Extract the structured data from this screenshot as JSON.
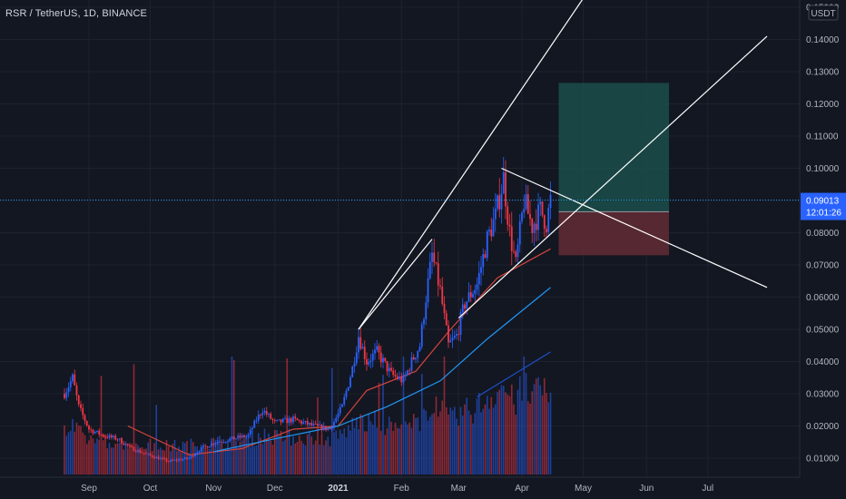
{
  "header": {
    "symbol_title": "RSR / TetherUS, 1D, BINANCE"
  },
  "axis": {
    "currency": "USDT",
    "last_price": "0.09013",
    "countdown": "12:01:26"
  },
  "colors": {
    "up": "#2962ff",
    "down": "#f23645",
    "ma_short": "#d3453d",
    "ma_mid": "#2196f3",
    "ma_long": "#1e50c8",
    "trend": "#ffffff",
    "profit": "#1b4d4a",
    "loss": "#5e2a33",
    "price_line": "#2196f3"
  },
  "chart_data": {
    "type": "candlestick",
    "title": "RSR / TetherUS, 1D, BINANCE",
    "ylabel": "USDT",
    "y_ticks": [
      "0.01000",
      "0.02000",
      "0.03000",
      "0.04000",
      "0.05000",
      "0.06000",
      "0.07000",
      "0.08000",
      "0.09000",
      "0.10000",
      "0.11000",
      "0.12000",
      "0.13000",
      "0.14000",
      "0.15000"
    ],
    "x_ticks": [
      "Sep",
      "Oct",
      "Nov",
      "Dec",
      "2021",
      "Feb",
      "Mar",
      "Apr",
      "May",
      "Jun",
      "Jul"
    ],
    "ylim": [
      0.0055,
      0.1515
    ],
    "time_range": [
      "2020-08-20",
      "2021-07-31"
    ],
    "price_points": [
      {
        "date": "2020-08-20",
        "close": 0.03
      },
      {
        "date": "2020-08-24",
        "close": 0.035
      },
      {
        "date": "2020-08-27",
        "close": 0.026
      },
      {
        "date": "2020-09-01",
        "close": 0.019
      },
      {
        "date": "2020-09-08",
        "close": 0.017
      },
      {
        "date": "2020-09-15",
        "close": 0.016
      },
      {
        "date": "2020-09-22",
        "close": 0.013
      },
      {
        "date": "2020-09-30",
        "close": 0.011
      },
      {
        "date": "2020-10-10",
        "close": 0.009
      },
      {
        "date": "2020-10-20",
        "close": 0.01
      },
      {
        "date": "2020-10-26",
        "close": 0.013
      },
      {
        "date": "2020-11-02",
        "close": 0.015
      },
      {
        "date": "2020-11-10",
        "close": 0.016
      },
      {
        "date": "2020-11-18",
        "close": 0.017
      },
      {
        "date": "2020-11-22",
        "close": 0.022
      },
      {
        "date": "2020-11-25",
        "close": 0.025
      },
      {
        "date": "2020-12-01",
        "close": 0.021
      },
      {
        "date": "2020-12-10",
        "close": 0.022
      },
      {
        "date": "2020-12-20",
        "close": 0.02
      },
      {
        "date": "2020-12-28",
        "close": 0.019
      },
      {
        "date": "2021-01-03",
        "close": 0.026
      },
      {
        "date": "2021-01-08",
        "close": 0.038
      },
      {
        "date": "2021-01-11",
        "close": 0.048
      },
      {
        "date": "2021-01-15",
        "close": 0.04
      },
      {
        "date": "2021-01-20",
        "close": 0.043
      },
      {
        "date": "2021-01-27",
        "close": 0.036
      },
      {
        "date": "2021-02-02",
        "close": 0.034
      },
      {
        "date": "2021-02-06",
        "close": 0.04
      },
      {
        "date": "2021-02-10",
        "close": 0.045
      },
      {
        "date": "2021-02-13",
        "close": 0.06
      },
      {
        "date": "2021-02-16",
        "close": 0.073
      },
      {
        "date": "2021-02-20",
        "close": 0.062
      },
      {
        "date": "2021-02-24",
        "close": 0.045
      },
      {
        "date": "2021-02-28",
        "close": 0.048
      },
      {
        "date": "2021-03-04",
        "close": 0.058
      },
      {
        "date": "2021-03-10",
        "close": 0.064
      },
      {
        "date": "2021-03-15",
        "close": 0.078
      },
      {
        "date": "2021-03-19",
        "close": 0.085
      },
      {
        "date": "2021-03-23",
        "close": 0.097
      },
      {
        "date": "2021-03-26",
        "close": 0.08
      },
      {
        "date": "2021-03-29",
        "close": 0.07
      },
      {
        "date": "2021-04-02",
        "close": 0.09
      },
      {
        "date": "2021-04-06",
        "close": 0.082
      },
      {
        "date": "2021-04-10",
        "close": 0.087
      },
      {
        "date": "2021-04-13",
        "close": 0.083
      },
      {
        "date": "2021-04-15",
        "close": 0.09
      }
    ],
    "moving_averages": [
      {
        "points": [
          [
            "2020-09-20",
            0.02
          ],
          [
            "2020-10-20",
            0.011
          ],
          [
            "2020-11-15",
            0.013
          ],
          [
            "2020-12-10",
            0.019
          ],
          [
            "2021-01-01",
            0.02
          ],
          [
            "2021-01-15",
            0.031
          ],
          [
            "2021-02-08",
            0.037
          ],
          [
            "2021-02-25",
            0.05
          ],
          [
            "2021-03-20",
            0.066
          ],
          [
            "2021-04-15",
            0.075
          ]
        ]
      },
      {
        "points": [
          [
            "2020-11-01",
            0.012
          ],
          [
            "2020-12-01",
            0.016
          ],
          [
            "2021-01-01",
            0.02
          ],
          [
            "2021-01-25",
            0.026
          ],
          [
            "2021-02-20",
            0.034
          ],
          [
            "2021-03-15",
            0.047
          ],
          [
            "2021-04-15",
            0.063
          ]
        ]
      },
      {
        "points": [
          [
            "2021-03-10",
            0.029
          ],
          [
            "2021-04-15",
            0.043
          ]
        ]
      }
    ],
    "trend_lines": [
      {
        "points": [
          [
            "2021-01-11",
            0.05
          ],
          [
            "2021-05-05",
            0.1565
          ]
        ]
      },
      {
        "points": [
          [
            "2021-03-01",
            0.0535
          ],
          [
            "2021-07-30",
            0.141
          ]
        ]
      },
      {
        "points": [
          [
            "2021-03-22",
            0.1
          ],
          [
            "2021-07-30",
            0.063
          ]
        ]
      },
      {
        "points": [
          [
            "2021-01-11",
            0.05
          ],
          [
            "2021-02-16",
            0.078
          ]
        ]
      }
    ],
    "position": {
      "start": "2021-04-19",
      "end": "2021-06-12",
      "entry": 0.0865,
      "target": 0.1265,
      "stop": 0.073
    },
    "last_price": 0.09013,
    "volume": {
      "scale_max": 0.22
    }
  }
}
